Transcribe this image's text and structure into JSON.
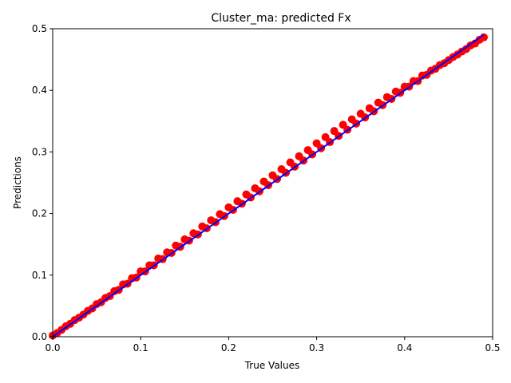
{
  "chart_data": {
    "type": "scatter",
    "title": "Cluster_ma: predicted Fx",
    "xlabel": "True Values",
    "ylabel": "Predictions",
    "xlim": [
      0.0,
      0.5
    ],
    "ylim": [
      0.0,
      0.5
    ],
    "xticks": [
      "0.0",
      "0.1",
      "0.2",
      "0.3",
      "0.4",
      "0.5"
    ],
    "yticks": [
      "0.0",
      "0.1",
      "0.2",
      "0.3",
      "0.4",
      "0.5"
    ],
    "grid": false,
    "point_color": "#ff0000",
    "line_color": "#0000ff",
    "reference_line": {
      "x": [
        0.0,
        0.49
      ],
      "y": [
        0.0,
        0.49
      ]
    },
    "points": {
      "x": [
        0.0,
        0.005,
        0.01,
        0.015,
        0.02,
        0.025,
        0.03,
        0.035,
        0.04,
        0.045,
        0.05,
        0.055,
        0.06,
        0.065,
        0.07,
        0.075,
        0.08,
        0.085,
        0.09,
        0.095,
        0.1,
        0.105,
        0.11,
        0.115,
        0.12,
        0.125,
        0.13,
        0.135,
        0.14,
        0.145,
        0.15,
        0.155,
        0.16,
        0.165,
        0.17,
        0.175,
        0.18,
        0.185,
        0.19,
        0.195,
        0.2,
        0.205,
        0.21,
        0.215,
        0.22,
        0.225,
        0.23,
        0.235,
        0.24,
        0.245,
        0.25,
        0.255,
        0.26,
        0.265,
        0.27,
        0.275,
        0.28,
        0.285,
        0.29,
        0.295,
        0.3,
        0.305,
        0.31,
        0.315,
        0.32,
        0.325,
        0.33,
        0.335,
        0.34,
        0.345,
        0.35,
        0.355,
        0.36,
        0.365,
        0.37,
        0.375,
        0.38,
        0.385,
        0.39,
        0.395,
        0.4,
        0.405,
        0.41,
        0.415,
        0.42,
        0.425,
        0.43,
        0.435,
        0.44,
        0.445,
        0.45,
        0.455,
        0.46,
        0.465,
        0.47,
        0.475,
        0.48,
        0.485,
        0.49
      ],
      "y": [
        0.002,
        0.006,
        0.011,
        0.017,
        0.021,
        0.027,
        0.031,
        0.036,
        0.042,
        0.046,
        0.053,
        0.056,
        0.063,
        0.066,
        0.074,
        0.076,
        0.085,
        0.086,
        0.095,
        0.096,
        0.106,
        0.106,
        0.116,
        0.116,
        0.127,
        0.126,
        0.137,
        0.136,
        0.148,
        0.146,
        0.158,
        0.156,
        0.168,
        0.166,
        0.179,
        0.176,
        0.189,
        0.186,
        0.199,
        0.196,
        0.21,
        0.206,
        0.22,
        0.216,
        0.231,
        0.226,
        0.241,
        0.236,
        0.252,
        0.246,
        0.262,
        0.256,
        0.272,
        0.266,
        0.283,
        0.276,
        0.293,
        0.286,
        0.303,
        0.296,
        0.314,
        0.306,
        0.324,
        0.316,
        0.334,
        0.326,
        0.344,
        0.336,
        0.353,
        0.346,
        0.362,
        0.356,
        0.371,
        0.366,
        0.38,
        0.376,
        0.389,
        0.386,
        0.398,
        0.396,
        0.406,
        0.406,
        0.415,
        0.415,
        0.424,
        0.425,
        0.432,
        0.435,
        0.441,
        0.444,
        0.449,
        0.454,
        0.458,
        0.463,
        0.467,
        0.473,
        0.476,
        0.482,
        0.486
      ]
    }
  }
}
